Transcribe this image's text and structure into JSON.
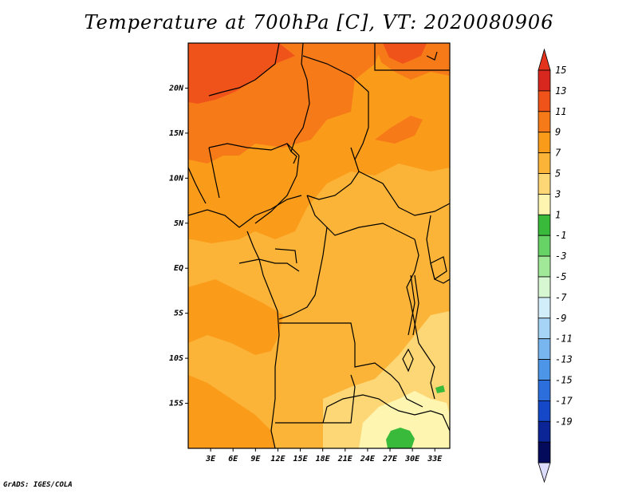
{
  "title": "Temperature at 700hPa [C], VT: 2020080906",
  "credit": "GrADS: IGES/COLA",
  "map": {
    "x_ticks": [
      "3E",
      "6E",
      "9E",
      "12E",
      "15E",
      "18E",
      "21E",
      "24E",
      "27E",
      "30E",
      "33E"
    ],
    "x_ticks_deg": [
      3,
      6,
      9,
      12,
      15,
      18,
      21,
      24,
      27,
      30,
      33
    ],
    "y_ticks": [
      "20N",
      "15N",
      "10N",
      "5N",
      "EQ",
      "5S",
      "10S",
      "15S"
    ],
    "y_ticks_deg": [
      20,
      15,
      10,
      5,
      0,
      -5,
      -10,
      -15
    ],
    "lon_range": [
      0,
      35
    ],
    "lat_range": [
      -20,
      25
    ]
  },
  "legend": {
    "labels": [
      "15",
      "13",
      "11",
      "9",
      "7",
      "5",
      "3",
      "1",
      "-1",
      "-3",
      "-5",
      "-7",
      "-9",
      "-11",
      "-13",
      "-15",
      "-17",
      "-19"
    ],
    "colors": [
      "#d7271e",
      "#f0531a",
      "#f77a18",
      "#fb9b1a",
      "#fbb437",
      "#fdd775",
      "#fdf5b0",
      "#3aba3a",
      "#67d367",
      "#a2e899",
      "#d6f7d2",
      "#d2eefb",
      "#a5d4f7",
      "#78b6f0",
      "#4c95e7",
      "#2b6edc",
      "#1548c8",
      "#0c2596",
      "#040b5a"
    ],
    "top_color": "#e4331c",
    "bottom_color": "#dcdcfc"
  }
}
